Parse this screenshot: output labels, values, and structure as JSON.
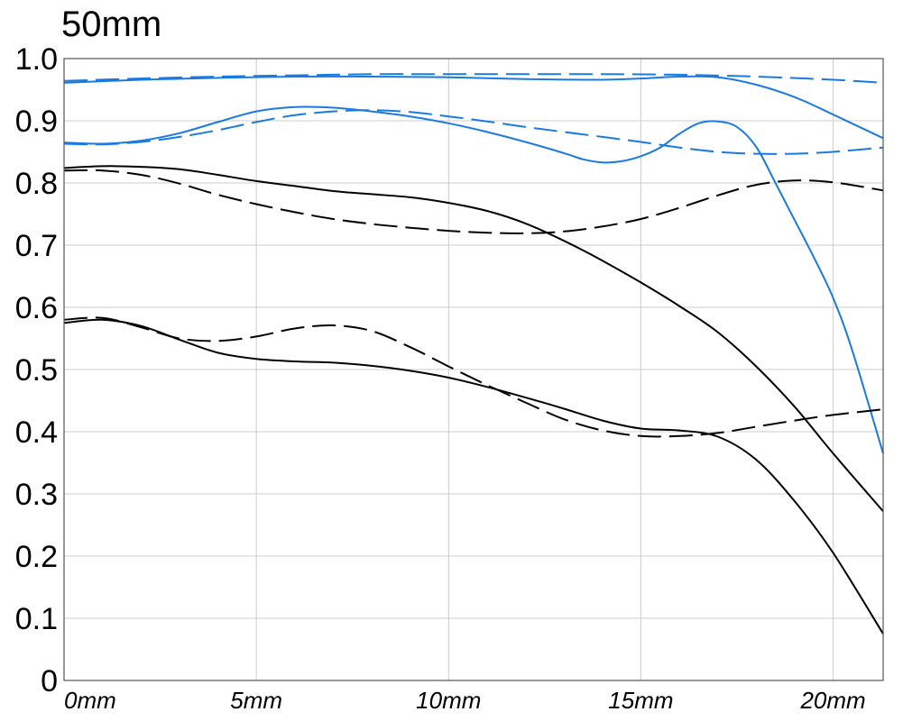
{
  "chart_data": {
    "type": "line",
    "title": "50mm",
    "xlabel": "",
    "ylabel": "",
    "xlim": [
      0,
      21.3
    ],
    "ylim": [
      0,
      1.0
    ],
    "x_ticks": [
      0,
      5,
      10,
      15,
      20
    ],
    "x_tick_labels": [
      "0mm",
      "5mm",
      "10mm",
      "15mm",
      "20mm"
    ],
    "y_ticks": [
      0,
      0.1,
      0.2,
      0.3,
      0.4,
      0.5,
      0.6,
      0.7,
      0.8,
      0.9,
      1.0
    ],
    "y_tick_labels": [
      "0",
      "0.1",
      "0.2",
      "0.3",
      "0.4",
      "0.5",
      "0.6",
      "0.7",
      "0.8",
      "0.9",
      "1.0"
    ],
    "grid": true,
    "series": [
      {
        "color": "#1a7ae0",
        "dash": "solid",
        "x": [
          0,
          2,
          4,
          6,
          8,
          10,
          12,
          14,
          15,
          16,
          17,
          18,
          19,
          20,
          21.3
        ],
        "y": [
          0.961,
          0.966,
          0.969,
          0.971,
          0.971,
          0.97,
          0.967,
          0.966,
          0.968,
          0.971,
          0.97,
          0.958,
          0.938,
          0.91,
          0.872
        ]
      },
      {
        "color": "#1a7ae0",
        "dash": "dashed",
        "x": [
          0,
          2,
          4,
          6,
          8,
          10,
          12,
          14,
          16,
          18,
          20,
          21.3
        ],
        "y": [
          0.964,
          0.968,
          0.971,
          0.973,
          0.975,
          0.975,
          0.975,
          0.975,
          0.974,
          0.971,
          0.966,
          0.961
        ]
      },
      {
        "color": "#1a7ae0",
        "dash": "solid",
        "x": [
          0,
          1,
          2,
          3,
          4,
          5,
          6,
          7,
          8,
          9,
          10,
          11,
          12,
          13,
          13.5,
          14,
          14.5,
          15,
          15.5,
          16,
          16.5,
          17,
          17.5,
          18,
          18.5,
          19,
          19.5,
          20,
          20.5,
          21.3
        ],
        "y": [
          0.865,
          0.863,
          0.868,
          0.88,
          0.898,
          0.915,
          0.922,
          0.921,
          0.915,
          0.907,
          0.896,
          0.882,
          0.866,
          0.848,
          0.838,
          0.833,
          0.835,
          0.843,
          0.857,
          0.879,
          0.896,
          0.899,
          0.89,
          0.858,
          0.8,
          0.74,
          0.68,
          0.615,
          0.53,
          0.365
        ]
      },
      {
        "color": "#1a7ae0",
        "dash": "dashed",
        "x": [
          0,
          1,
          2,
          3,
          4,
          5,
          6,
          7,
          8,
          9,
          10,
          11,
          12,
          13,
          14,
          15,
          16,
          17,
          18,
          19,
          20,
          21.3
        ],
        "y": [
          0.863,
          0.862,
          0.866,
          0.874,
          0.885,
          0.898,
          0.909,
          0.915,
          0.917,
          0.914,
          0.907,
          0.899,
          0.89,
          0.882,
          0.874,
          0.866,
          0.857,
          0.85,
          0.847,
          0.847,
          0.85,
          0.857
        ]
      },
      {
        "color": "#000000",
        "dash": "solid",
        "x": [
          0,
          1,
          2,
          3,
          4,
          5,
          6,
          7,
          8,
          9,
          10,
          11,
          12,
          13,
          14,
          15,
          16,
          17,
          18,
          19,
          20,
          21.3
        ],
        "y": [
          0.824,
          0.827,
          0.826,
          0.822,
          0.813,
          0.803,
          0.795,
          0.787,
          0.782,
          0.777,
          0.768,
          0.755,
          0.735,
          0.707,
          0.675,
          0.64,
          0.602,
          0.56,
          0.505,
          0.44,
          0.365,
          0.272
        ]
      },
      {
        "color": "#000000",
        "dash": "dashed",
        "x": [
          0,
          1,
          2,
          3,
          4,
          5,
          6,
          7,
          8,
          9,
          10,
          11,
          12,
          13,
          14,
          15,
          16,
          17,
          18,
          19,
          20,
          21.3
        ],
        "y": [
          0.82,
          0.82,
          0.813,
          0.799,
          0.781,
          0.766,
          0.753,
          0.742,
          0.734,
          0.728,
          0.723,
          0.72,
          0.719,
          0.722,
          0.73,
          0.742,
          0.76,
          0.78,
          0.797,
          0.804,
          0.801,
          0.788
        ]
      },
      {
        "color": "#000000",
        "dash": "solid",
        "x": [
          0,
          1,
          2,
          3,
          4,
          5,
          6,
          7,
          8,
          9,
          10,
          11,
          12,
          13,
          14,
          15,
          16,
          17,
          18,
          19,
          20,
          21.3
        ],
        "y": [
          0.575,
          0.58,
          0.57,
          0.548,
          0.527,
          0.517,
          0.513,
          0.511,
          0.506,
          0.498,
          0.487,
          0.472,
          0.455,
          0.437,
          0.418,
          0.405,
          0.402,
          0.392,
          0.355,
          0.288,
          0.205,
          0.075
        ]
      },
      {
        "color": "#000000",
        "dash": "dashed",
        "x": [
          0,
          1,
          2,
          3,
          4,
          5,
          6,
          7,
          8,
          9,
          10,
          11,
          12,
          13,
          14,
          15,
          16,
          17,
          18,
          19,
          20,
          21.3
        ],
        "y": [
          0.58,
          0.583,
          0.568,
          0.55,
          0.546,
          0.553,
          0.566,
          0.571,
          0.562,
          0.536,
          0.505,
          0.475,
          0.447,
          0.42,
          0.402,
          0.393,
          0.393,
          0.398,
          0.408,
          0.418,
          0.427,
          0.436
        ]
      }
    ]
  }
}
